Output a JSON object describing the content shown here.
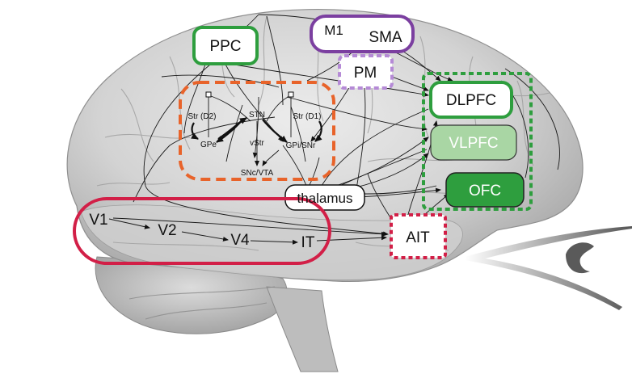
{
  "regions": {
    "ppc": "PPC",
    "m1": "M1",
    "sma": "SMA",
    "pm": "PM",
    "dlpfc": "DLPFC",
    "vlpfc": "VLPFC",
    "ofc": "OFC",
    "thalamus": "thalamus",
    "ait": "AIT",
    "v1": "V1",
    "v2": "V2",
    "v4": "V4",
    "it": "IT"
  },
  "basal_ganglia": {
    "str_d2": "Str (D2)",
    "stn": "STN",
    "str_d1": "Str (D1)",
    "gpe": "GPe",
    "vstr": "vStr",
    "gpi_snr": "GPi/SNr",
    "snc_vta": "SNc/VTA"
  },
  "colors": {
    "green": "#2e9e3e",
    "purple": "#7b3fa0",
    "lavender": "#b58ad6",
    "orange": "#e8632a",
    "crimson": "#d21f47",
    "vlpfc_fill": "#a9d6a4",
    "ofc_fill": "#2e9e3e",
    "brain_gray": "#c9c9c9"
  }
}
